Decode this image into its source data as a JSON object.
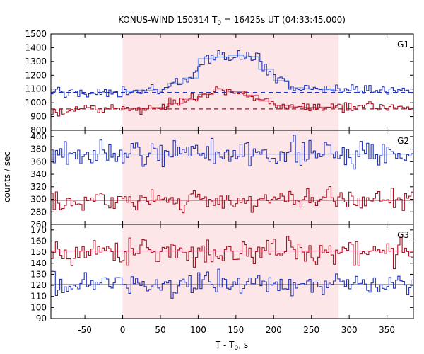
{
  "chart_data": {
    "type": "line",
    "title_main": "KONUS-WIND 150314 T",
    "title_sub": "0",
    "title_rest": " = 16425s UT (04:33:45.000)",
    "xlabel_main": "T - T",
    "xlabel_sub": "0",
    "xlabel_rest": ", s",
    "ylabel": "counts / sec",
    "xlim": [
      -95,
      385
    ],
    "xticks": [
      -50,
      0,
      50,
      100,
      150,
      200,
      250,
      300,
      350
    ],
    "highlight": [
      0,
      286
    ],
    "colors": {
      "blue": "#2233bb",
      "red": "#aa1122",
      "fit_blue": "#77aaff",
      "fit_red": "#ee6688",
      "highlight": "#fde6e8"
    },
    "panels": [
      {
        "label": "G1",
        "ylim": [
          800,
          1500
        ],
        "yticks": [
          800,
          900,
          1000,
          1100,
          1200,
          1300,
          1400,
          1500
        ],
        "series": [
          {
            "color": "blue",
            "background": 1075,
            "profile": [
              [
                -95,
                1075
              ],
              [
                0,
                1080
              ],
              [
                50,
                1100
              ],
              [
                90,
                1180
              ],
              [
                110,
                1320
              ],
              [
                150,
                1345
              ],
              [
                180,
                1330
              ],
              [
                195,
                1200
              ],
              [
                230,
                1110
              ],
              [
                286,
                1090
              ],
              [
                385,
                1085
              ]
            ],
            "noise": 20
          },
          {
            "color": "red",
            "background": 955,
            "profile": [
              [
                -95,
                950
              ],
              [
                0,
                955
              ],
              [
                50,
                965
              ],
              [
                100,
                1040
              ],
              [
                130,
                1100
              ],
              [
                160,
                1070
              ],
              [
                180,
                1040
              ],
              [
                200,
                985
              ],
              [
                240,
                965
              ],
              [
                286,
                970
              ],
              [
                385,
                960
              ]
            ],
            "noise": 18
          }
        ]
      },
      {
        "label": "G2",
        "ylim": [
          260,
          410
        ],
        "yticks": [
          260,
          280,
          300,
          320,
          340,
          360,
          380,
          400
        ],
        "series": [
          {
            "color": "blue",
            "background": 372,
            "profile": [
              [
                -95,
                372
              ],
              [
                385,
                374
              ]
            ],
            "noise": 10
          },
          {
            "color": "red",
            "background": 298,
            "profile": [
              [
                -95,
                298
              ],
              [
                385,
                299
              ]
            ],
            "noise": 8
          }
        ]
      },
      {
        "label": "G3",
        "ylim": [
          90,
          175
        ],
        "yticks": [
          90,
          100,
          110,
          120,
          130,
          140,
          150,
          160,
          170
        ],
        "series": [
          {
            "color": "red",
            "background": 151,
            "profile": [
              [
                -95,
                150
              ],
              [
                385,
                151
              ]
            ],
            "noise": 6
          },
          {
            "color": "blue",
            "background": 121,
            "profile": [
              [
                -95,
                121
              ],
              [
                385,
                122
              ]
            ],
            "noise": 5
          }
        ]
      }
    ]
  }
}
